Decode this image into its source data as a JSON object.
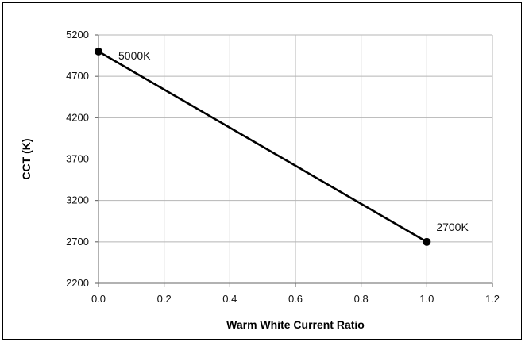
{
  "chart_data": {
    "type": "scatter",
    "title": "",
    "xlabel": "Warm White Current Ratio",
    "ylabel": "CCT (K)",
    "xlim": [
      0.0,
      1.2
    ],
    "ylim": [
      2200,
      5200
    ],
    "x_ticks": [
      "0.0",
      "0.2",
      "0.4",
      "0.6",
      "0.8",
      "1.0",
      "1.2"
    ],
    "y_ticks": [
      "2200",
      "2700",
      "3200",
      "3700",
      "4200",
      "4700",
      "5200"
    ],
    "grid": true,
    "legend": "none",
    "series": [
      {
        "x": [
          0.0,
          1.0
        ],
        "y": [
          5000,
          2700
        ],
        "line": true,
        "markers": true,
        "color": "#000000",
        "labels": [
          "5000K",
          "2700K"
        ]
      }
    ]
  }
}
